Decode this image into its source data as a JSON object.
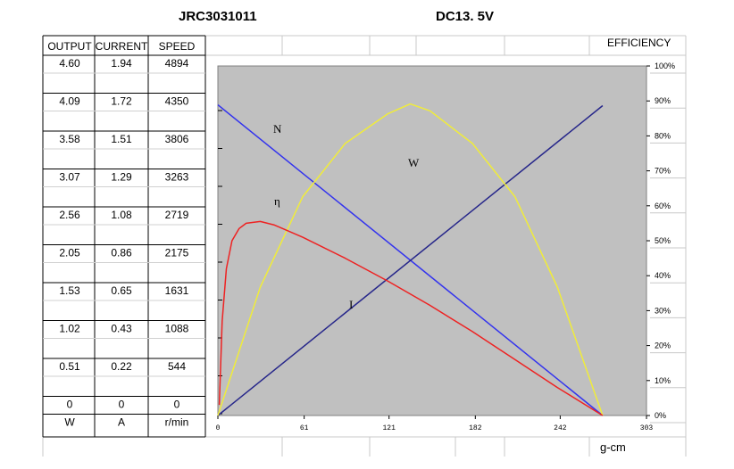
{
  "title": "JRC3031011",
  "voltage": "DC13. 5V",
  "table": {
    "headers": [
      "OUTPUT",
      "CURRENT",
      "SPEED"
    ],
    "rows": [
      [
        "4.60",
        "1.94",
        "4894"
      ],
      [
        "4.09",
        "1.72",
        "4350"
      ],
      [
        "3.58",
        "1.51",
        "3806"
      ],
      [
        "3.07",
        "1.29",
        "3263"
      ],
      [
        "2.56",
        "1.08",
        "2719"
      ],
      [
        "2.05",
        "0.86",
        "2175"
      ],
      [
        "1.53",
        "0.65",
        "1631"
      ],
      [
        "1.02",
        "0.43",
        "1088"
      ],
      [
        "0.51",
        "0.22",
        "544"
      ],
      [
        "0",
        "0",
        "0"
      ]
    ],
    "units": [
      "W",
      "A",
      "r/min"
    ]
  },
  "efficiency_label": "EFFICIENCY",
  "x_unit": "g-cm",
  "chart_data": {
    "type": "line",
    "title": "JRC3031011",
    "subtitle": "DC13. 5V",
    "xlabel": "g-cm",
    "ylabel": "",
    "right_axis_label": "EFFICIENCY",
    "xlim": [
      0,
      303
    ],
    "x_ticks": [
      "0",
      "61",
      "121",
      "182",
      "242",
      "303"
    ],
    "ylim_right": [
      0,
      100
    ],
    "y_ticks_right": [
      "0%",
      "10%",
      "20%",
      "30%",
      "40%",
      "50%",
      "60%",
      "70%",
      "80%",
      "90%",
      "100%"
    ],
    "grid": false,
    "series": [
      {
        "name": "N",
        "color": "#3333ee",
        "x": [
          0,
          272
        ],
        "y": [
          4350,
          0
        ]
      },
      {
        "name": "I",
        "color": "#26268a",
        "x": [
          0,
          272
        ],
        "y": [
          0,
          1.72
        ]
      },
      {
        "name": "W",
        "color": "#f0ec3a",
        "x": [
          0,
          30,
          60,
          90,
          120,
          136,
          150,
          180,
          210,
          240,
          272
        ],
        "y": [
          0,
          1.69,
          2.88,
          3.58,
          3.97,
          4.1,
          4.01,
          3.58,
          2.88,
          1.69,
          0
        ]
      },
      {
        "name": "η",
        "color": "#ee2222",
        "x": [
          1,
          3,
          6,
          10,
          15,
          20,
          30,
          40,
          60,
          90,
          120,
          150,
          180,
          210,
          240,
          272
        ],
        "y": [
          3,
          27,
          42,
          50,
          53.5,
          55,
          55.5,
          54.5,
          51,
          45,
          38.5,
          31.5,
          24,
          16,
          8,
          0
        ]
      }
    ],
    "curve_labels": [
      "N",
      "η",
      "W",
      "I"
    ]
  }
}
